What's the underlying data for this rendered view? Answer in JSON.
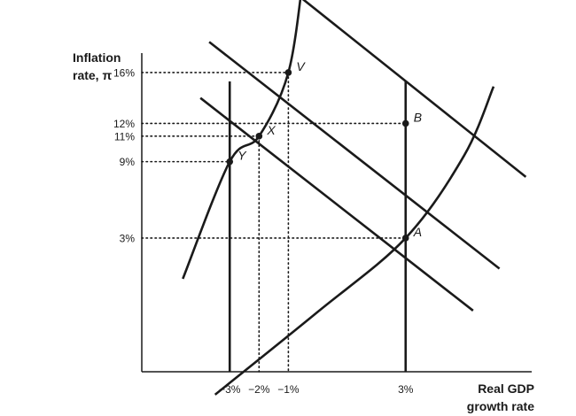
{
  "chart_data": {
    "type": "line",
    "title": "",
    "ylabel": [
      "Inflation",
      "rate, π"
    ],
    "xlabel": [
      "Real GDP",
      "growth rate"
    ],
    "y_ticks": [
      {
        "value": 16,
        "label": "16%"
      },
      {
        "value": 12,
        "label": "12%"
      },
      {
        "value": 11,
        "label": "11%"
      },
      {
        "value": 9,
        "label": "9%"
      },
      {
        "value": 3,
        "label": "3%"
      }
    ],
    "x_ticks": [
      {
        "value": -3,
        "label": "−3%"
      },
      {
        "value": -2,
        "label": "−2%"
      },
      {
        "value": -1,
        "label": "−1%"
      },
      {
        "value": 3,
        "label": "3%"
      }
    ],
    "xlim": [
      -6,
      7.3
    ],
    "ylim": [
      -7.5,
      21
    ],
    "grid": false,
    "legend": "none",
    "vertical_lines": [
      -3,
      3
    ],
    "series": [
      {
        "id": "ad-upper",
        "points": [
          [
            -0.8,
            22.3
          ],
          [
            7.1,
            7.8
          ]
        ]
      },
      {
        "id": "ad-mid",
        "points": [
          [
            -3.7,
            18.4
          ],
          [
            6.2,
            0.6
          ]
        ]
      },
      {
        "id": "ad-low",
        "points": [
          [
            -4.0,
            14.0
          ],
          [
            5.3,
            -2.7
          ]
        ]
      },
      {
        "id": "curve-left",
        "points": [
          [
            -4.6,
            -0.2
          ],
          [
            -3.0,
            9.0
          ],
          [
            -2.0,
            11.0
          ],
          [
            -1.0,
            16.0
          ],
          [
            -0.5,
            23.4
          ]
        ]
      },
      {
        "id": "curve-right",
        "points": [
          [
            -3.5,
            -9.3
          ],
          [
            0.0,
            -2.8
          ],
          [
            3.0,
            3.0
          ],
          [
            5.0,
            9.5
          ],
          [
            6.0,
            14.9
          ]
        ]
      }
    ],
    "points": [
      {
        "label": "V",
        "x": -1,
        "y": 16
      },
      {
        "label": "B",
        "x": 3,
        "y": 12
      },
      {
        "label": "X",
        "x": -2,
        "y": 11
      },
      {
        "label": "Y",
        "x": -3,
        "y": 9
      },
      {
        "label": "A",
        "x": 3,
        "y": 3
      }
    ],
    "dotted_guides": [
      {
        "point": "V",
        "horizontal": true,
        "vertical": true
      },
      {
        "point": "B",
        "horizontal": true,
        "vertical": false
      },
      {
        "point": "X",
        "horizontal": true,
        "vertical": true
      },
      {
        "point": "Y",
        "horizontal": true,
        "vertical": false
      },
      {
        "point": "A",
        "horizontal": true,
        "vertical": false
      }
    ],
    "colors": {
      "ink": "#1a1a1a",
      "background": "#ffffff"
    }
  }
}
